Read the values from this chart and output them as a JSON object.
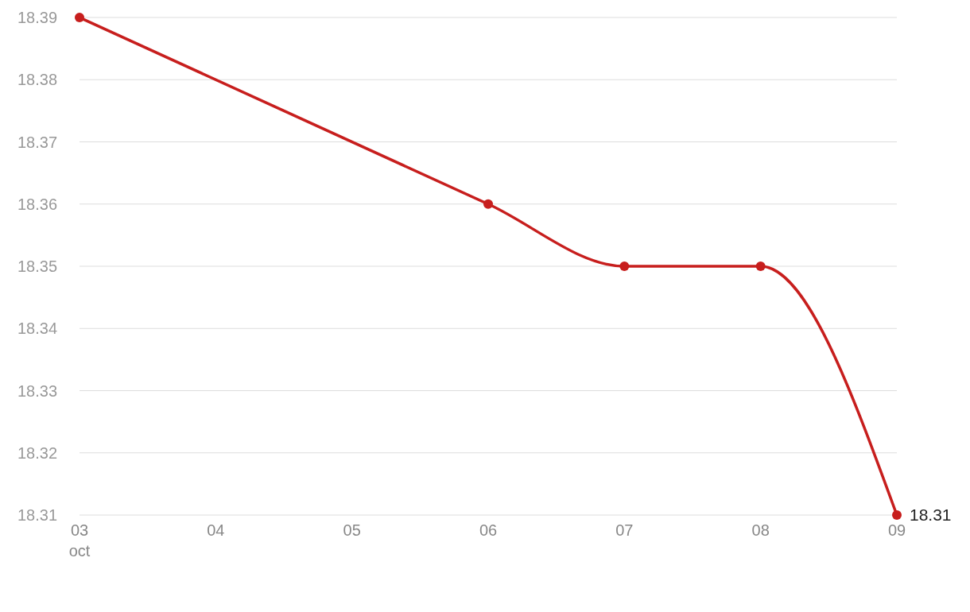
{
  "chart_data": {
    "type": "line",
    "x": [
      "--10-03",
      "--10-06",
      "--10-07",
      "--10-08",
      "--10-09"
    ],
    "series": [
      {
        "color": "#c71e1d",
        "values": [
          18.39,
          18.36,
          18.35,
          18.35,
          18.31
        ],
        "value_labels": [
          null,
          null,
          null,
          null,
          "18.31"
        ]
      }
    ],
    "xlim": [
      "--10-03",
      "--10-09"
    ],
    "xticks": [
      {
        "value": "--10-03",
        "label": "03\noct"
      },
      {
        "value": "--10-04",
        "label": "04"
      },
      {
        "value": "--10-05",
        "label": "05"
      },
      {
        "value": "--10-06",
        "label": "06"
      },
      {
        "value": "--10-07",
        "label": "07"
      },
      {
        "value": "--10-08",
        "label": "08"
      },
      {
        "value": "--10-09",
        "label": "09"
      }
    ],
    "ylim": [
      18.31,
      18.39
    ],
    "yticks": [
      18.31,
      18.32,
      18.33,
      18.34,
      18.35,
      18.36,
      18.37,
      18.38,
      18.39
    ],
    "grid": "y",
    "marker": "circle",
    "line_style": "solid"
  }
}
